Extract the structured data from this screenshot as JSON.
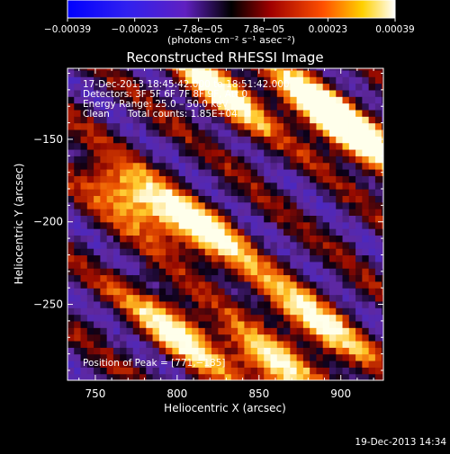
{
  "chart_data": {
    "type": "heatmap",
    "title": "Reconstructed RHESSI Image",
    "xlabel": "Heliocentric X (arcsec)",
    "ylabel": "Heliocentric Y (arcsec)",
    "xlim": [
      733,
      926
    ],
    "ylim": [
      -296,
      -107
    ],
    "x_ticks": [
      750,
      800,
      850,
      900
    ],
    "x_tick_labels": [
      "750",
      "800",
      "850",
      "900"
    ],
    "y_ticks": [
      -250,
      -200,
      -150
    ],
    "y_tick_labels": [
      "−250",
      "−200",
      "−150"
    ],
    "grid": false,
    "colorbar": {
      "position": "top",
      "range": [
        -0.00039,
        0.00039
      ],
      "tick_values": [
        -0.00039,
        -0.00023,
        -7.8e-05,
        7.8e-05,
        0.00023,
        0.00039
      ],
      "tick_labels": [
        "−0.00039",
        "−0.00023",
        "−7.8e−05",
        "7.8e−05",
        "0.00023",
        "0.00039"
      ],
      "unit_label": "(photons cm⁻² s⁻¹ asec⁻²)",
      "colors": [
        "#0000ff",
        "#6020c0",
        "#000000",
        "#a00000",
        "#ff6000",
        "#ffffff"
      ]
    },
    "annotations": [
      "17‑Dec‑2013 18:45:42.000 to 18:51:42.000",
      "Detectors: 3F 5F 6F 7F 8F 9F, Att 0",
      "Energy Range: 25.0 – 50.0 keV",
      "Clean      Total counts: 1.85E+04"
    ],
    "peak_label": "Position of Peak = [771,−185]",
    "peak": [
      771,
      -185
    ],
    "peak_value": 0.00039,
    "bright_sources": [
      {
        "x": 771,
        "y": -185
      },
      {
        "x": 912,
        "y": -150
      },
      {
        "x": 800,
        "y": -265
      },
      {
        "x": 825,
        "y": -120
      },
      {
        "x": 885,
        "y": -130
      },
      {
        "x": 815,
        "y": -205
      },
      {
        "x": 860,
        "y": -290
      },
      {
        "x": 884,
        "y": -262
      }
    ],
    "pixel_size_arcsec": 4
  },
  "footer": {
    "timestamp": "19‑Dec‑2013 14:34"
  }
}
